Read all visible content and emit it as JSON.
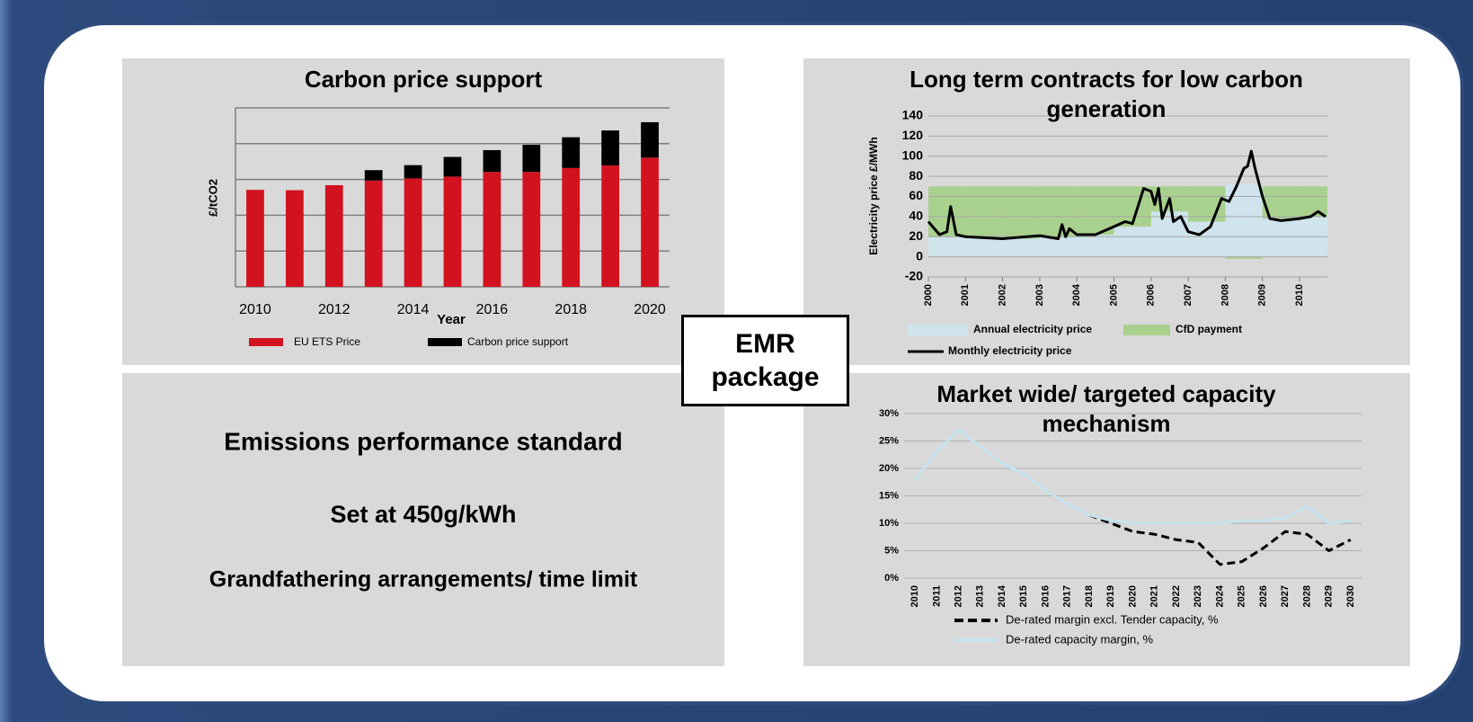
{
  "center_label": "EMR package",
  "text_panel": {
    "title": "Emissions performance standard",
    "lines": [
      "Set at 450g/kWh",
      "Grandfathering arrangements/ time limit"
    ]
  },
  "chart_data": [
    {
      "type": "stacked_bar",
      "title": "Carbon price support",
      "x_label": "Year",
      "y_label": "£/tCO2",
      "categories": [
        "2010",
        null,
        "2012",
        null,
        "2014",
        null,
        "2016",
        null,
        "2018",
        null,
        "2020"
      ],
      "series": [
        {
          "name": "EU ETS Price",
          "color": "#d3121f",
          "values": [
            27.1,
            27,
            28.4,
            29.7,
            30.3,
            30.8,
            32.1,
            32.1,
            33.2,
            33.9,
            36.1
          ]
        },
        {
          "name": "Carbon price support",
          "color": "#000000",
          "values": [
            null,
            null,
            null,
            2.9,
            3.7,
            5.5,
            6.1,
            7.6,
            8.6,
            9.8,
            9.9
          ]
        }
      ],
      "ylim": [
        0,
        50
      ],
      "yticks": [
        0,
        10,
        20,
        30,
        40,
        50
      ],
      "ytick_labels": false,
      "grid": true
    },
    {
      "type": "line_area",
      "title": "Long term contracts for low carbon generation",
      "y_label": "Electricity price £/MWh",
      "xlim": [
        2000,
        2010.75
      ],
      "xticks": [
        2000,
        2001,
        2002,
        2003,
        2004,
        2005,
        2006,
        2007,
        2008,
        2009,
        2010
      ],
      "ylim": [
        -20,
        140
      ],
      "yticks": [
        -20,
        0,
        20,
        40,
        60,
        80,
        100,
        120,
        140
      ],
      "grid": true,
      "series": [
        {
          "name": "Annual electricity price",
          "kind": "area",
          "color": "#cfe4ec",
          "x": [
            2000,
            2001,
            2002,
            2003,
            2004,
            2005,
            2006,
            2007,
            2008,
            2009,
            2010
          ],
          "values": [
            20,
            20,
            18,
            20,
            22,
            30,
            45,
            35,
            72,
            38,
            40
          ]
        },
        {
          "name": "CfD payment",
          "kind": "area",
          "color": "#a9d18e",
          "x": [
            2000,
            2001,
            2002,
            2003,
            2004,
            2005,
            2006,
            2007,
            2008,
            2009,
            2010
          ],
          "values": [
            50,
            50,
            52,
            50,
            48,
            40,
            25,
            35,
            -2,
            32,
            30
          ]
        },
        {
          "name": "Monthly electricity price",
          "kind": "line",
          "color": "#000000",
          "x": [
            2000,
            2000.3,
            2000.5,
            2000.6,
            2000.75,
            2001,
            2002,
            2003,
            2003.5,
            2003.6,
            2003.7,
            2003.8,
            2004,
            2004.5,
            2005,
            2005.3,
            2005.5,
            2005.8,
            2006,
            2006.1,
            2006.2,
            2006.3,
            2006.5,
            2006.6,
            2006.8,
            2007,
            2007.3,
            2007.6,
            2007.9,
            2008.1,
            2008.3,
            2008.5,
            2008.6,
            2008.7,
            2008.8,
            2009,
            2009.2,
            2009.5,
            2010,
            2010.3,
            2010.5,
            2010.7
          ],
          "values": [
            35,
            22,
            25,
            50,
            22,
            20,
            18,
            21,
            18,
            32,
            20,
            28,
            22,
            22,
            30,
            35,
            33,
            68,
            65,
            52,
            68,
            38,
            58,
            35,
            40,
            25,
            22,
            30,
            58,
            55,
            70,
            88,
            90,
            105,
            88,
            60,
            38,
            36,
            38,
            40,
            45,
            40
          ]
        }
      ]
    },
    {
      "type": "line",
      "title": "Market wide/ targeted capacity mechanism",
      "categories": [
        "2010",
        "2011",
        "2012",
        "2013",
        "2014",
        "2015",
        "2016",
        "2017",
        "2018",
        "2019",
        "2020",
        "2021",
        "2022",
        "2023",
        "2024",
        "2025",
        "2026",
        "2027",
        "2028",
        "2029",
        "2030"
      ],
      "ylim": [
        0,
        30
      ],
      "yticks": [
        {
          "value": 0,
          "label": "0%"
        },
        {
          "value": 5,
          "label": "5%"
        },
        {
          "value": 10,
          "label": "10%"
        },
        {
          "value": 15,
          "label": "15%"
        },
        {
          "value": 20,
          "label": "20%"
        },
        {
          "value": 25,
          "label": "25%"
        },
        {
          "value": 30,
          "label": "30%"
        }
      ],
      "grid": true,
      "series": [
        {
          "name": "De-rated margin excl. Tender capacity, %",
          "color": "#000000",
          "dashed": true,
          "values": [
            null,
            null,
            null,
            null,
            null,
            null,
            null,
            null,
            11.5,
            10,
            8.5,
            8,
            7,
            6.5,
            2.5,
            3,
            5.5,
            8.5,
            8,
            5,
            7
          ]
        },
        {
          "name": "De-rated capacity margin, %",
          "color": "#c5e4ef",
          "dashed": false,
          "values": [
            18,
            23,
            27,
            24,
            21,
            19,
            16,
            13.5,
            11.5,
            10.5,
            10,
            10,
            10,
            10,
            10,
            10.5,
            10.5,
            11,
            13,
            10,
            10.5
          ]
        }
      ]
    }
  ]
}
